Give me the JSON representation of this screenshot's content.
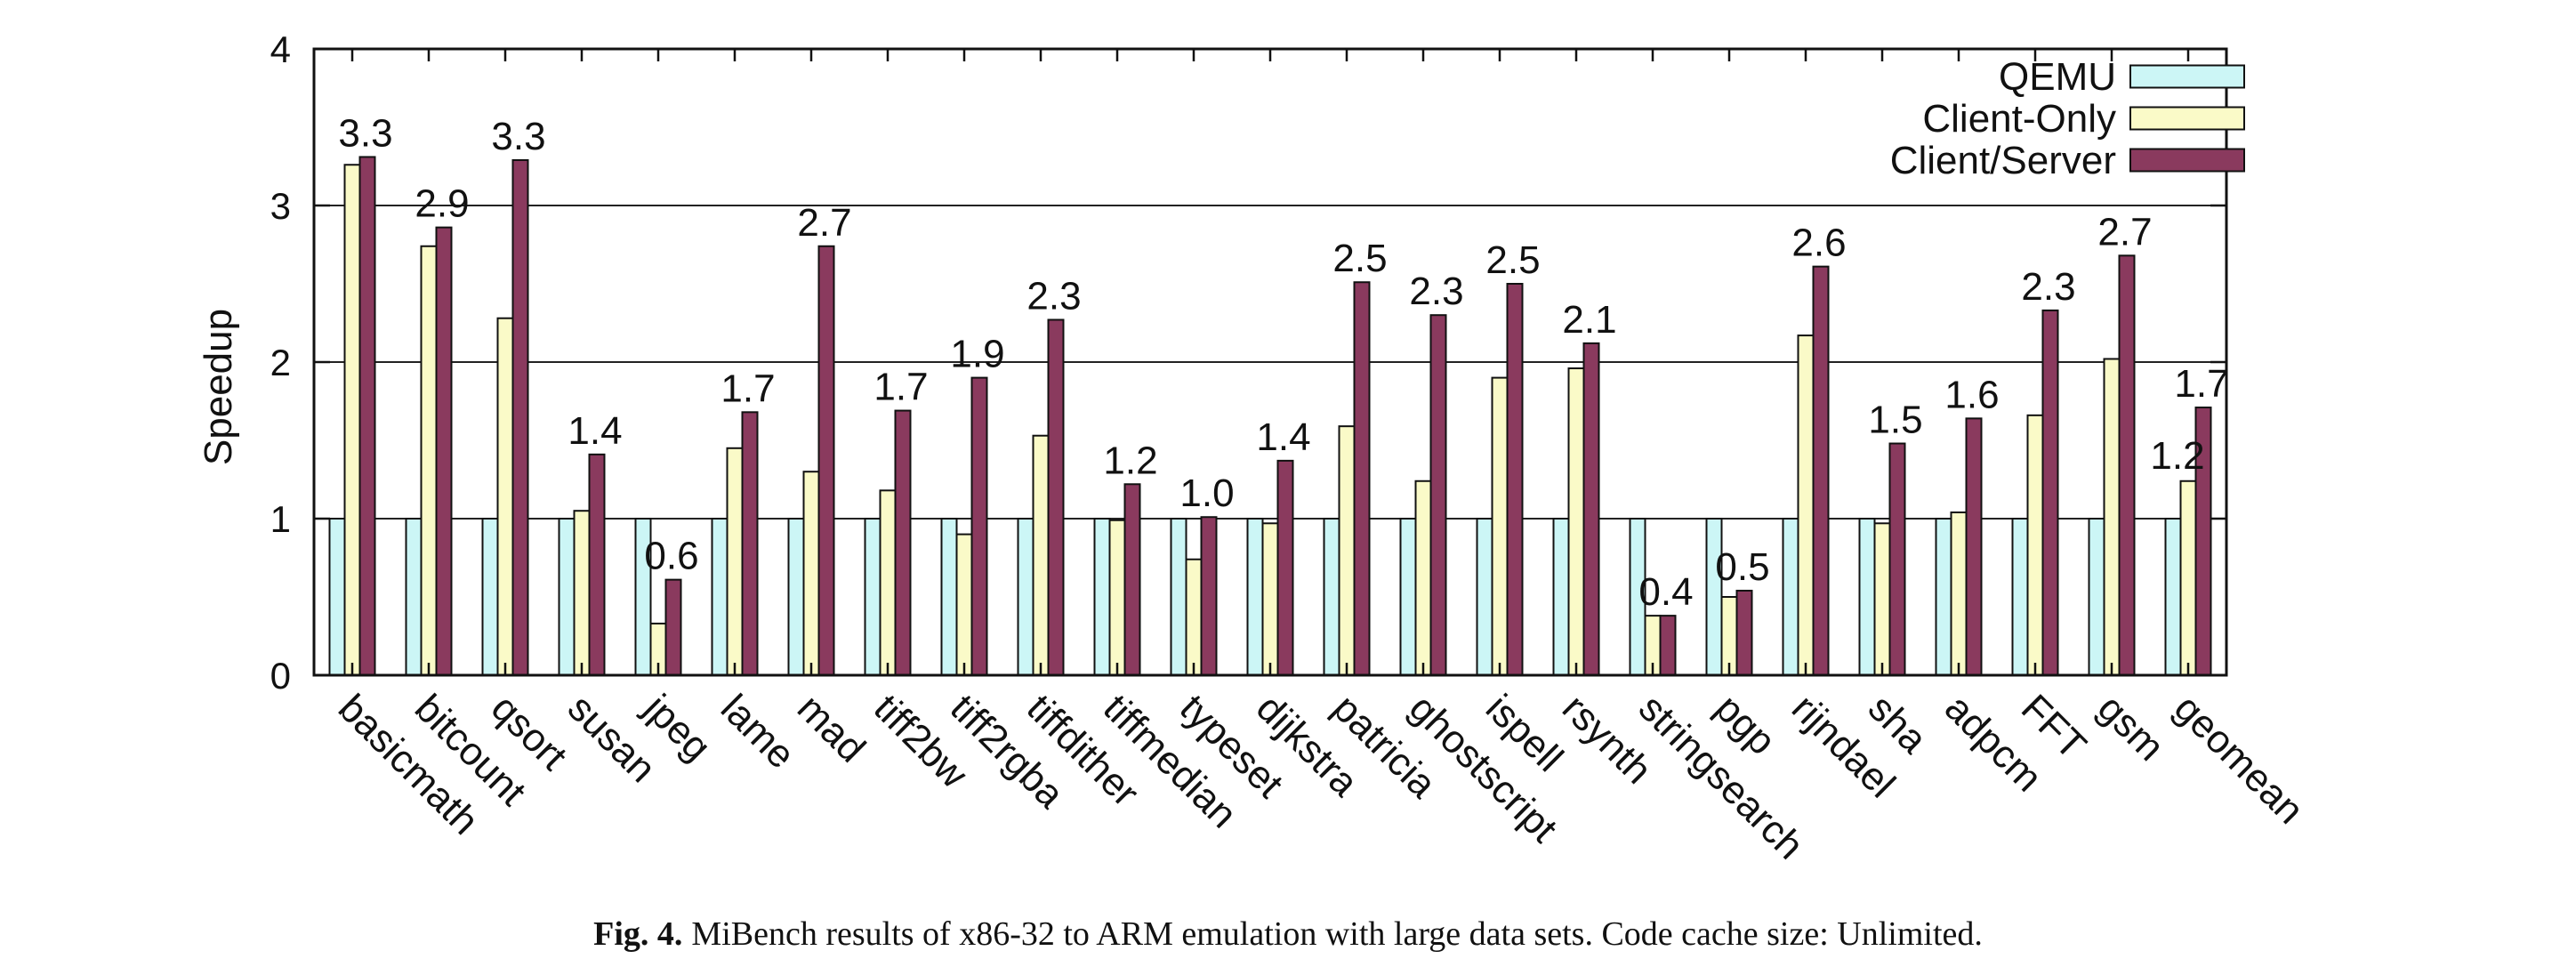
{
  "figure": {
    "caption_label": "Fig. 4.",
    "caption_text": "MiBench results of x86-32 to ARM emulation with large data sets. Code cache size: Unlimited."
  },
  "chart_data": {
    "type": "bar",
    "title": "",
    "xlabel": "",
    "ylabel": "Speedup",
    "ylim": [
      0,
      4
    ],
    "yticks": [
      0,
      1,
      2,
      3,
      4
    ],
    "grid": "horizontal",
    "legend_position": "top-right",
    "categories": [
      "basicmath",
      "bitcount",
      "qsort",
      "susan",
      "jpeg",
      "lame",
      "mad",
      "tiff2bw",
      "tiff2rgba",
      "tiffdither",
      "tiffmedian",
      "typeset",
      "dijkstra",
      "patricia",
      "ghostscript",
      "ispell",
      "rsynth",
      "stringsearch",
      "pgp",
      "rijndael",
      "sha",
      "adpcm",
      "FFT",
      "gsm",
      "geomean"
    ],
    "series": [
      {
        "name": "QEMU",
        "color": "#ccf6f6",
        "values": [
          1,
          1,
          1,
          1,
          1,
          1,
          1,
          1,
          1,
          1,
          1,
          1,
          1,
          1,
          1,
          1,
          1,
          1,
          1,
          1,
          1,
          1,
          1,
          1,
          1
        ]
      },
      {
        "name": "Client-Only",
        "color": "#fafac8",
        "values": [
          3.26,
          2.74,
          2.28,
          1.05,
          0.33,
          1.45,
          1.3,
          1.18,
          0.9,
          1.53,
          0.99,
          0.74,
          0.97,
          1.59,
          1.24,
          1.9,
          1.96,
          0.38,
          0.5,
          2.17,
          0.97,
          1.04,
          1.66,
          2.02,
          1.24
        ]
      },
      {
        "name": "Client/Server",
        "color": "#8a3a5e",
        "values": [
          3.31,
          2.86,
          3.29,
          1.41,
          0.61,
          1.68,
          2.74,
          1.69,
          1.9,
          2.27,
          1.22,
          1.01,
          1.37,
          2.51,
          2.3,
          2.5,
          2.12,
          0.38,
          0.54,
          2.61,
          1.48,
          1.64,
          2.33,
          2.68,
          1.71
        ]
      }
    ],
    "annotations": [
      {
        "category": "basicmath",
        "label": "3.3"
      },
      {
        "category": "bitcount",
        "label": "2.9"
      },
      {
        "category": "qsort",
        "label": "3.3"
      },
      {
        "category": "susan",
        "label": "1.4"
      },
      {
        "category": "jpeg",
        "label": "0.6"
      },
      {
        "category": "lame",
        "label": "1.7"
      },
      {
        "category": "mad",
        "label": "2.7"
      },
      {
        "category": "tiff2bw",
        "label": "1.7"
      },
      {
        "category": "tiff2rgba",
        "label": "1.9"
      },
      {
        "category": "tiffdither",
        "label": "2.3"
      },
      {
        "category": "tiffmedian",
        "label": "1.2"
      },
      {
        "category": "typeset",
        "label": "1.0"
      },
      {
        "category": "dijkstra",
        "label": "1.4"
      },
      {
        "category": "patricia",
        "label": "2.5"
      },
      {
        "category": "ghostscript",
        "label": "2.3"
      },
      {
        "category": "ispell",
        "label": "2.5"
      },
      {
        "category": "rsynth",
        "label": "2.1"
      },
      {
        "category": "stringsearch",
        "label": "0.4"
      },
      {
        "category": "pgp",
        "label": "0.5"
      },
      {
        "category": "rijndael",
        "label": "2.6"
      },
      {
        "category": "sha",
        "label": "1.5"
      },
      {
        "category": "adpcm",
        "label": "1.6"
      },
      {
        "category": "FFT",
        "label": "2.3"
      },
      {
        "category": "gsm",
        "label": "2.7"
      },
      {
        "category": "geomean",
        "label": "1.2"
      },
      {
        "category": "geomean",
        "label": "1.7"
      }
    ]
  }
}
